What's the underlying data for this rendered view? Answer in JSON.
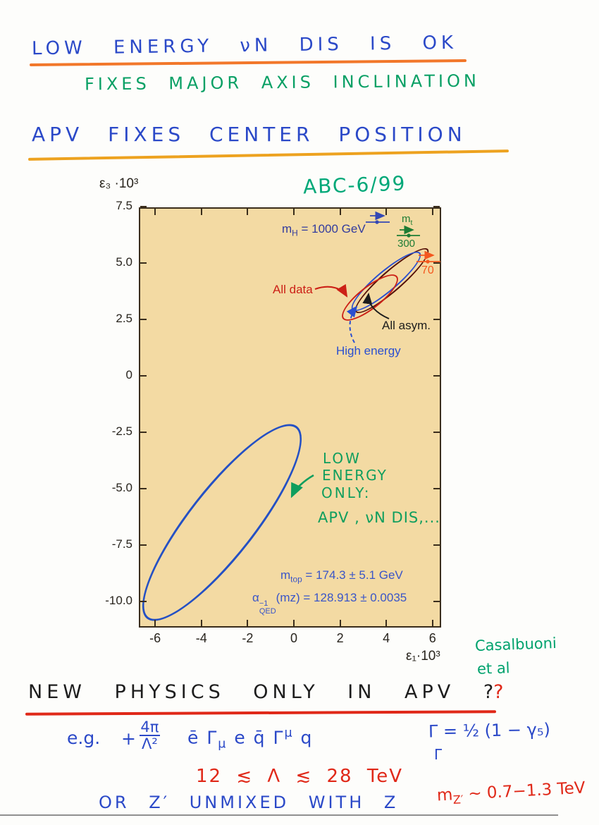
{
  "header": {
    "line1": "LOW ENERGY νN DIS IS OK",
    "line2": "FIXES MAJOR AXIS INCLINATION",
    "line3": "APV FIXES CENTER POSITION"
  },
  "figure": {
    "tag": "ABC-6/99",
    "y_axis_title": "ε3 ·103",
    "y_axis_title_unicode": "ε₃ ·10³",
    "x_axis_title_unicode": "ε₁·10³",
    "mh": {
      "m": "m",
      "sub": "H",
      "rest": " = 1000 GeV"
    },
    "mt": {
      "m": "m",
      "sub": "t",
      "high": "300",
      "low": "70"
    },
    "labels": {
      "all_data": "All data",
      "all_asym": "All asym.",
      "high_energy": "High energy"
    },
    "mtop": {
      "m": "m",
      "sub": "top",
      "rest": " = 174.3 ± 5.1 GeV"
    },
    "alpha": {
      "a": "α",
      "sup": "−1",
      "sub": "QED",
      "rest": "(mz) = 128.913 ± 0.0035"
    },
    "green_note": {
      "l1": "LOW",
      "l2": "ENERGY",
      "l3": "ONLY:",
      "l4": "APV , νN DIS,..."
    }
  },
  "side_note": {
    "l1": "Casalbuoni",
    "l2": "et al"
  },
  "bottom": {
    "question": {
      "text": "NEW PHYSICS ONLY IN APV",
      "q1": "?",
      "q2": "?"
    },
    "eg": {
      "prefix": "e.g.",
      "plus": "+",
      "num": "4π",
      "den": "Λ²",
      "expr1": "ē Γ",
      "sub1": "μ",
      "expr2": " e  q̄ Γ",
      "sup2": "μ",
      "expr3": " q"
    },
    "gamma_def": {
      "main": "Γ = ½ (1 − γ₅)",
      "stray": "Γ"
    },
    "lambda_range": "12 ≲ Λ ≲ 28 TeV",
    "zprime": "OR Z′ UNMIXED WITH Z",
    "mzprime": {
      "m": "m",
      "sub": "Z′",
      "rest": " ~ 0.7−1.3 TeV"
    }
  },
  "colors": {
    "hand_blue": "#2b49c8",
    "hand_green": "#0aa065",
    "hand_red": "#e02818",
    "hand_black": "#1d1d1d",
    "underline_orange1": "#f2772a",
    "underline_orange2": "#eda21f",
    "plot_bg": "#f3daa3",
    "plot_frame": "#3a2d1c",
    "print_navy": "#323b9e",
    "print_blue": "#3a55c8",
    "ellipse_all_data": "#cc2016",
    "ellipse_all_asym": "#551108",
    "ellipse_high_energy": "#2a4fd0",
    "ellipse_low_energy": "#2450c4",
    "arrow_orange": "#f4581e",
    "arrow_dark_green": "#1e7c34"
  },
  "chart_data": {
    "type": "scatter",
    "title": "ε1–ε3 electroweak fit confidence ellipses",
    "xlabel": "ε₁·10³",
    "ylabel": "ε₃ ·10³",
    "xlim": [
      -6.7,
      6.4
    ],
    "ylim": [
      -11.2,
      7.5
    ],
    "grid": false,
    "x_ticks": [
      -6,
      -4,
      -2,
      0,
      2,
      4,
      6
    ],
    "y_ticks": [
      7.5,
      5,
      2.5,
      0,
      -2.5,
      -5,
      -7.5,
      -10
    ],
    "y_tick_labels": [
      "7.5",
      "5.0",
      "2.5",
      "0",
      "-2.5",
      "-5.0",
      "-7.5",
      "-10.0"
    ],
    "series": [
      {
        "name": "All data",
        "type": "ellipse",
        "color": "#cc2016",
        "center": [
          3.2,
          3.5
        ],
        "x_extent": [
          2.1,
          4.4
        ],
        "y_extent": [
          2.6,
          4.6
        ]
      },
      {
        "name": "All asym.",
        "type": "ellipse",
        "color": "#551108",
        "center": [
          4.2,
          4.3
        ],
        "x_extent": [
          2.8,
          5.7
        ],
        "y_extent": [
          2.8,
          5.7
        ]
      },
      {
        "name": "High energy",
        "type": "ellipse",
        "color": "#2a4fd0",
        "center": [
          3.9,
          4.2
        ],
        "x_extent": [
          2.5,
          5.4
        ],
        "y_extent": [
          2.9,
          5.5
        ]
      },
      {
        "name": "Low energy only (APV, νN DIS)",
        "type": "ellipse",
        "color": "#2450c4",
        "center": [
          -3.2,
          -6.4
        ],
        "x_extent": [
          -6.5,
          0.1
        ],
        "y_extent": [
          -10.9,
          -2.0
        ]
      }
    ],
    "annotations": [
      "mH = 1000 GeV",
      "mt → 300",
      "→ 70",
      "mtop = 174.3 ± 5.1 GeV",
      "α⁻¹QED(mz) = 128.913 ± 0.0035"
    ],
    "legend_position": "in-plot labels with arrows"
  }
}
